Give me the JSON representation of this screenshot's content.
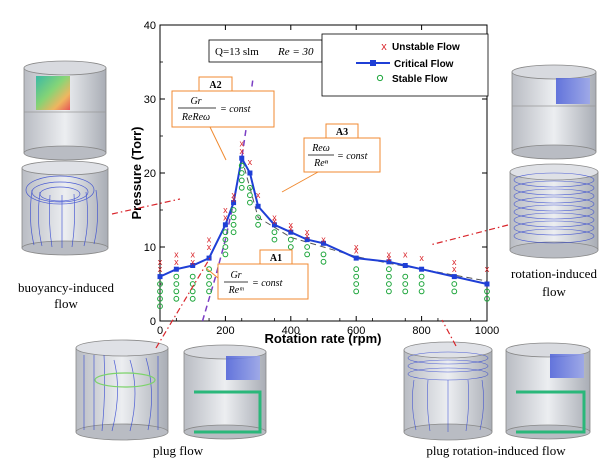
{
  "chart_data": {
    "type": "scatter",
    "xlabel": "Rotation rate (rpm)",
    "ylabel": "Pressure (Torr)",
    "xlim": [
      0,
      1000
    ],
    "ylim": [
      0,
      40
    ],
    "xticks": [
      "0",
      "200",
      "400",
      "600",
      "800",
      "1000"
    ],
    "yticks": [
      "0",
      "10",
      "20",
      "30",
      "40"
    ],
    "grid": false,
    "legend_position": "top-right",
    "condition_label": "Q=13 slm",
    "re_label": "Re = 30",
    "legend": {
      "unstable": "Unstable Flow",
      "critical": "Critical Flow",
      "stable": "Stable Flow"
    },
    "colors": {
      "unstable": "#d9262c",
      "critical": "#1f3fd6",
      "stable": "#1ea63c",
      "annotation_border": "#f08a30",
      "fit_line": "#7b3fc4"
    },
    "series": [
      {
        "name": "Critical Flow",
        "points": [
          [
            0,
            6
          ],
          [
            50,
            7
          ],
          [
            100,
            7.5
          ],
          [
            150,
            8.5
          ],
          [
            200,
            13
          ],
          [
            225,
            16
          ],
          [
            250,
            22
          ],
          [
            275,
            20
          ],
          [
            300,
            15.5
          ],
          [
            350,
            13
          ],
          [
            400,
            12
          ],
          [
            450,
            11
          ],
          [
            500,
            10.5
          ],
          [
            600,
            8.5
          ],
          [
            700,
            8
          ],
          [
            750,
            7.5
          ],
          [
            800,
            7
          ],
          [
            900,
            6
          ],
          [
            1000,
            5
          ]
        ]
      },
      {
        "name": "Unstable Flow",
        "points": [
          [
            0,
            8
          ],
          [
            0,
            7
          ],
          [
            50,
            9
          ],
          [
            50,
            8
          ],
          [
            100,
            9
          ],
          [
            100,
            8
          ],
          [
            150,
            11
          ],
          [
            150,
            10
          ],
          [
            200,
            15
          ],
          [
            200,
            14
          ],
          [
            225,
            17
          ],
          [
            225,
            16.5
          ],
          [
            250,
            24
          ],
          [
            250,
            23
          ],
          [
            275,
            21.5
          ],
          [
            300,
            17
          ],
          [
            350,
            14
          ],
          [
            350,
            13.5
          ],
          [
            400,
            13
          ],
          [
            400,
            12.5
          ],
          [
            450,
            12
          ],
          [
            450,
            11.5
          ],
          [
            500,
            11
          ],
          [
            600,
            10
          ],
          [
            600,
            9.5
          ],
          [
            700,
            9
          ],
          [
            700,
            8.5
          ],
          [
            750,
            9
          ],
          [
            800,
            8.5
          ],
          [
            900,
            8
          ],
          [
            900,
            7
          ],
          [
            1000,
            7
          ]
        ]
      },
      {
        "name": "Stable Flow",
        "points": [
          [
            0,
            5
          ],
          [
            0,
            4
          ],
          [
            0,
            3
          ],
          [
            0,
            2
          ],
          [
            50,
            6
          ],
          [
            50,
            5
          ],
          [
            50,
            4
          ],
          [
            50,
            3
          ],
          [
            100,
            6
          ],
          [
            100,
            5
          ],
          [
            100,
            4
          ],
          [
            100,
            3
          ],
          [
            150,
            7
          ],
          [
            150,
            6
          ],
          [
            150,
            5
          ],
          [
            150,
            4
          ],
          [
            200,
            12
          ],
          [
            200,
            11
          ],
          [
            200,
            10
          ],
          [
            200,
            9
          ],
          [
            225,
            15
          ],
          [
            225,
            14
          ],
          [
            225,
            13
          ],
          [
            225,
            12
          ],
          [
            250,
            21
          ],
          [
            250,
            20
          ],
          [
            250,
            19
          ],
          [
            250,
            18
          ],
          [
            275,
            18
          ],
          [
            275,
            17
          ],
          [
            275,
            16
          ],
          [
            300,
            14
          ],
          [
            300,
            13
          ],
          [
            350,
            12
          ],
          [
            350,
            11
          ],
          [
            400,
            11
          ],
          [
            400,
            10
          ],
          [
            450,
            10
          ],
          [
            450,
            9
          ],
          [
            500,
            9
          ],
          [
            500,
            8
          ],
          [
            600,
            7
          ],
          [
            600,
            6
          ],
          [
            600,
            5
          ],
          [
            600,
            4
          ],
          [
            700,
            7
          ],
          [
            700,
            6
          ],
          [
            700,
            5
          ],
          [
            700,
            4
          ],
          [
            750,
            6
          ],
          [
            750,
            5
          ],
          [
            750,
            4
          ],
          [
            800,
            6
          ],
          [
            800,
            5
          ],
          [
            800,
            4
          ],
          [
            900,
            5
          ],
          [
            900,
            4
          ],
          [
            1000,
            4
          ],
          [
            1000,
            3
          ]
        ]
      }
    ],
    "annotations": [
      {
        "id": "A2",
        "formula_num": "Gr",
        "formula_den": "ReReω",
        "formula_rhs": "= const"
      },
      {
        "id": "A3",
        "formula_num": "Reω",
        "formula_den": "Reⁿ",
        "formula_rhs": "= const"
      },
      {
        "id": "A1",
        "formula_num": "Gr",
        "formula_den": "Reᵐ",
        "formula_rhs": "= const"
      }
    ]
  },
  "captions": {
    "buoyancy": "buoyancy-induced flow",
    "rotation": "rotation-induced flow",
    "plug": "plug flow",
    "plug_rotation": "plug rotation-induced flow"
  }
}
